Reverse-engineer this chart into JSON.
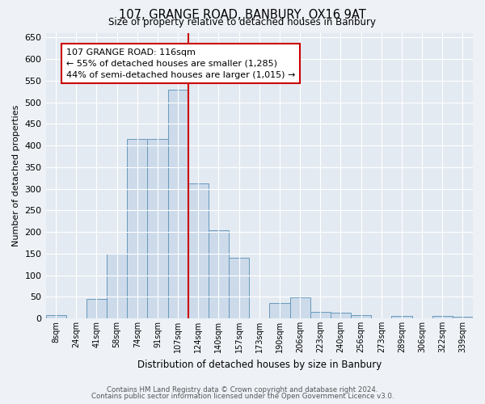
{
  "title": "107, GRANGE ROAD, BANBURY, OX16 9AT",
  "subtitle": "Size of property relative to detached houses in Banbury",
  "xlabel": "Distribution of detached houses by size in Banbury",
  "ylabel": "Number of detached properties",
  "bin_labels": [
    "8sqm",
    "24sqm",
    "41sqm",
    "58sqm",
    "74sqm",
    "91sqm",
    "107sqm",
    "124sqm",
    "140sqm",
    "157sqm",
    "173sqm",
    "190sqm",
    "206sqm",
    "223sqm",
    "240sqm",
    "256sqm",
    "273sqm",
    "289sqm",
    "306sqm",
    "322sqm",
    "339sqm"
  ],
  "bar_values": [
    8,
    0,
    45,
    150,
    415,
    415,
    530,
    313,
    203,
    140,
    0,
    35,
    48,
    15,
    13,
    8,
    0,
    5,
    0,
    5,
    3
  ],
  "bar_color": "#ccdaea",
  "bar_edgecolor": "#6699bb",
  "vline_x_index": 6,
  "vline_color": "#cc0000",
  "annotation_text": "107 GRANGE ROAD: 116sqm\n← 55% of detached houses are smaller (1,285)\n44% of semi-detached houses are larger (1,015) →",
  "annotation_boxcolor": "#ffffff",
  "annotation_edgecolor": "#cc0000",
  "ylim": [
    0,
    660
  ],
  "yticks": [
    0,
    50,
    100,
    150,
    200,
    250,
    300,
    350,
    400,
    450,
    500,
    550,
    600,
    650
  ],
  "footer1": "Contains HM Land Registry data © Crown copyright and database right 2024.",
  "footer2": "Contains public sector information licensed under the Open Government Licence v3.0.",
  "bg_color": "#eef2f7",
  "plot_bg_color": "#e4eaf2"
}
